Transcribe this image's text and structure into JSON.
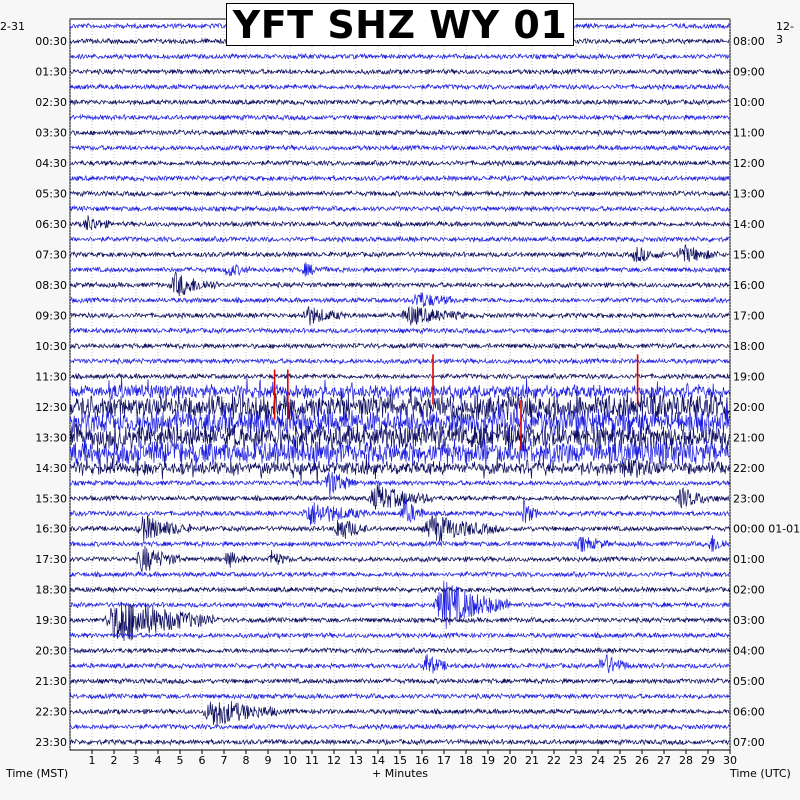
{
  "title": "YFT SHZ WY 01",
  "corner_left": "2-31",
  "corner_right": "12-3",
  "colors": {
    "trace_a": "#0b0b5e",
    "trace_b": "#1d1de0",
    "pick": "#dd0000",
    "grid": "#9a9a9a",
    "background": "#f7f7f7",
    "plot_background": "#ffffff"
  },
  "chart_data": {
    "type": "helicorder",
    "title": "YFT SHZ WY 01",
    "xlabel": "+ Minutes",
    "ylabel_left": "Time (MST)",
    "ylabel_right": "Time (UTC)",
    "xlim": [
      0,
      30
    ],
    "x_ticks": [
      1,
      2,
      3,
      4,
      5,
      6,
      7,
      8,
      9,
      10,
      11,
      12,
      13,
      14,
      15,
      16,
      17,
      18,
      19,
      20,
      21,
      22,
      23,
      24,
      25,
      26,
      27,
      28,
      29,
      30
    ],
    "lines_per_hour": 2,
    "line_minutes": 30,
    "left_labels": [
      "00:30",
      "01:30",
      "02:30",
      "03:30",
      "04:30",
      "05:30",
      "06:30",
      "07:30",
      "08:30",
      "09:30",
      "10:30",
      "11:30",
      "12:30",
      "13:30",
      "14:30",
      "15:30",
      "16:30",
      "17:30",
      "18:30",
      "19:30",
      "20:30",
      "21:30",
      "22:30",
      "23:30"
    ],
    "right_labels": [
      "08:00",
      "09:00",
      "10:00",
      "11:00",
      "12:00",
      "13:00",
      "14:00",
      "15:00",
      "16:00",
      "17:00",
      "18:00",
      "19:00",
      "20:00",
      "21:00",
      "22:00",
      "23:00",
      "00:00 01-01",
      "01:00",
      "02:00",
      "03:00",
      "04:00",
      "05:00",
      "06:00",
      "07:00"
    ],
    "noisy_period": {
      "from_line": 24,
      "to_line": 29,
      "note_x_range": [
        0,
        30
      ]
    },
    "events": [
      {
        "line": 13,
        "x": 0.6,
        "amp": 0.9,
        "dur": 1.2
      },
      {
        "line": 15,
        "x": 25.5,
        "amp": 0.8,
        "dur": 1.5
      },
      {
        "line": 15,
        "x": 27.5,
        "amp": 1.0,
        "dur": 2.0
      },
      {
        "line": 16,
        "x": 7.0,
        "amp": 0.7,
        "dur": 1.2
      },
      {
        "line": 16,
        "x": 10.5,
        "amp": 0.6,
        "dur": 1.2
      },
      {
        "line": 17,
        "x": 4.5,
        "amp": 1.3,
        "dur": 2.2
      },
      {
        "line": 18,
        "x": 15.5,
        "amp": 0.9,
        "dur": 2.0
      },
      {
        "line": 19,
        "x": 10.5,
        "amp": 1.0,
        "dur": 2.0
      },
      {
        "line": 19,
        "x": 15.0,
        "amp": 1.0,
        "dur": 3.0
      },
      {
        "line": 29,
        "x": 25.0,
        "amp": 1.0,
        "dur": 2.0
      },
      {
        "line": 30,
        "x": 11.5,
        "amp": 1.6,
        "dur": 1.5
      },
      {
        "line": 31,
        "x": 13.5,
        "amp": 1.4,
        "dur": 3.0
      },
      {
        "line": 31,
        "x": 27.5,
        "amp": 1.0,
        "dur": 2.0
      },
      {
        "line": 32,
        "x": 10.5,
        "amp": 1.3,
        "dur": 3.0
      },
      {
        "line": 32,
        "x": 15.0,
        "amp": 1.5,
        "dur": 1.2
      },
      {
        "line": 32,
        "x": 20.5,
        "amp": 1.4,
        "dur": 0.8
      },
      {
        "line": 33,
        "x": 3.0,
        "amp": 1.4,
        "dur": 2.5
      },
      {
        "line": 33,
        "x": 12.0,
        "amp": 1.4,
        "dur": 1.5
      },
      {
        "line": 33,
        "x": 16.0,
        "amp": 1.5,
        "dur": 3.5
      },
      {
        "line": 34,
        "x": 23.0,
        "amp": 0.8,
        "dur": 1.5
      },
      {
        "line": 34,
        "x": 29.0,
        "amp": 1.0,
        "dur": 1.0
      },
      {
        "line": 35,
        "x": 3.0,
        "amp": 1.5,
        "dur": 2.0
      },
      {
        "line": 35,
        "x": 7.0,
        "amp": 0.9,
        "dur": 1.0
      },
      {
        "line": 35,
        "x": 9.0,
        "amp": 0.9,
        "dur": 1.0
      },
      {
        "line": 38,
        "x": 16.5,
        "amp": 2.6,
        "dur": 3.5
      },
      {
        "line": 39,
        "x": 1.5,
        "amp": 2.6,
        "dur": 5.0
      },
      {
        "line": 42,
        "x": 16.0,
        "amp": 1.3,
        "dur": 1.2
      },
      {
        "line": 42,
        "x": 24.0,
        "amp": 1.3,
        "dur": 1.5
      },
      {
        "line": 45,
        "x": 6.0,
        "amp": 1.6,
        "dur": 3.5
      }
    ],
    "picks": [
      {
        "line": 23,
        "x": 16.5
      },
      {
        "line": 23,
        "x": 25.8
      },
      {
        "line": 24,
        "x": 9.3
      },
      {
        "line": 24,
        "x": 9.9
      },
      {
        "line": 26,
        "x": 20.5
      }
    ]
  }
}
